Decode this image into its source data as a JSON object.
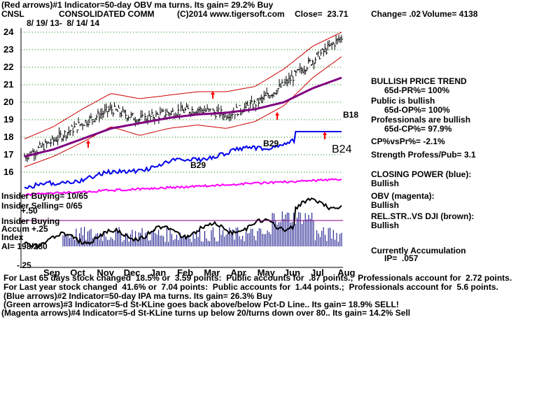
{
  "header": {
    "line1": "(Red arrows)#1 Indicator=50-day OBV ma turns. Its gain= 29.2% Buy",
    "symbol": "CNSL",
    "company": "CONSOLIDATED COMM",
    "copyright": "(C)2014 www.tigersoft.com",
    "close": "Close=  23.71",
    "change": "Change= .02",
    "volume": "Volume= 4138",
    "date_range": "8/ 19/ 13-  8/ 14/ 14"
  },
  "y_axis_labels": [
    "24",
    "23",
    "22",
    "21",
    "20",
    "19",
    "18",
    "17",
    "16"
  ],
  "chart_annotations": {
    "b18": "B18",
    "b29_top": "B29",
    "b29_low": "B29",
    "b24": "B24"
  },
  "left_panel": {
    "insider_buying_pct": "Insider Buying= 10/65",
    "insider_selling_pct": "Insider Selling= 0/65",
    "insider_buying": "Insider Buying",
    "accum_label": "Accum",
    "accum_top": "+.25",
    "plus50": "+.50",
    "index_label": "Index",
    "ai": "AI= 198/280",
    "minus25": "-.25"
  },
  "right_panel": {
    "trend_title": "BULLISH PRICE TREND",
    "pr": "65d-PR%= 100%",
    "public": "Public is bullish",
    "op": "65d-OP%= 100%",
    "professionals": "Professionals are bullish",
    "cp": "65d-CP%= 97.9%",
    "cpvspr": "CP%vsPr%= -2.1%",
    "strength": "Strength Profess/Pub= 3.1",
    "closing_power": "CLOSING POWER (blue):",
    "cp_state": "Bullish",
    "obv": "OBV (magenta):",
    "obv_state": "Bullish",
    "relstr": "REL.STR..VS DJI (brown):",
    "relstr_state": "Bullish",
    "accum": "Currently Accumulation",
    "ip": "IP=  .057"
  },
  "months": [
    "Sep",
    "Oct",
    "Nov",
    "Dec",
    "Jan",
    "Feb",
    "Mar",
    "Apr",
    "May",
    "Jun",
    "Jul",
    "Aug"
  ],
  "footer": {
    "l1": "For Last 65 days stock changed  18.5% or  3.59 points:  Public accounts for  .87 points.;  Professionals account for  2.72 points.",
    "l2": "For Last year stock changed  41.6% or  7.04 points:  Public accounts for  1.44 points.;  Professionals account for  5.6 points.",
    "l3": "(Blue arrows)#2 Indicator=50-day IPA ma turns. Its gain= 26.3% Buy",
    "l4": "(Green arrows)#3 Indicator=5-d St-KLine goes back above/below Pct-D Line.. Its gain= 18.9% SELL!",
    "l5": "(Magenta arrows)#4 Indicator=5-d St-KLine turns up below 20/turns down over 80.. Its gain= 14.2% Sell"
  },
  "colors": {
    "price": "#000000",
    "bands": "#cc0000",
    "ma": "#800080",
    "closing_power": "#0000ee",
    "obv": "#ff00ff",
    "accum": "#000080",
    "grid": "#008000",
    "buy_arrow": "#ff0000"
  },
  "chart_data": {
    "type": "line",
    "title": "CONSOLIDATED COMM",
    "xlabel": "",
    "ylabel": "",
    "ylim": [
      16,
      24
    ],
    "x": [
      "Sep",
      "Oct",
      "Nov",
      "Dec",
      "Jan",
      "Feb",
      "Mar",
      "Apr",
      "May",
      "Jun",
      "Jul",
      "Aug"
    ],
    "series": [
      {
        "values": [
          16.9,
          17.8,
          18.8,
          19.6,
          19.0,
          19.4,
          19.6,
          19.3,
          19.9,
          21.0,
          22.4,
          23.7
        ]
      },
      {
        "values": [
          16.9,
          17.3,
          17.9,
          18.5,
          18.8,
          19.1,
          19.3,
          19.4,
          19.6,
          20.0,
          20.8,
          21.4
        ]
      },
      {
        "values": [
          17.9,
          18.6,
          19.6,
          20.5,
          20.2,
          20.4,
          20.6,
          20.6,
          20.9,
          21.9,
          23.2,
          24.0
        ]
      },
      {
        "values": [
          16.3,
          16.9,
          17.7,
          18.6,
          18.1,
          18.5,
          18.7,
          18.5,
          18.9,
          19.8,
          21.4,
          22.6
        ]
      }
    ]
  }
}
